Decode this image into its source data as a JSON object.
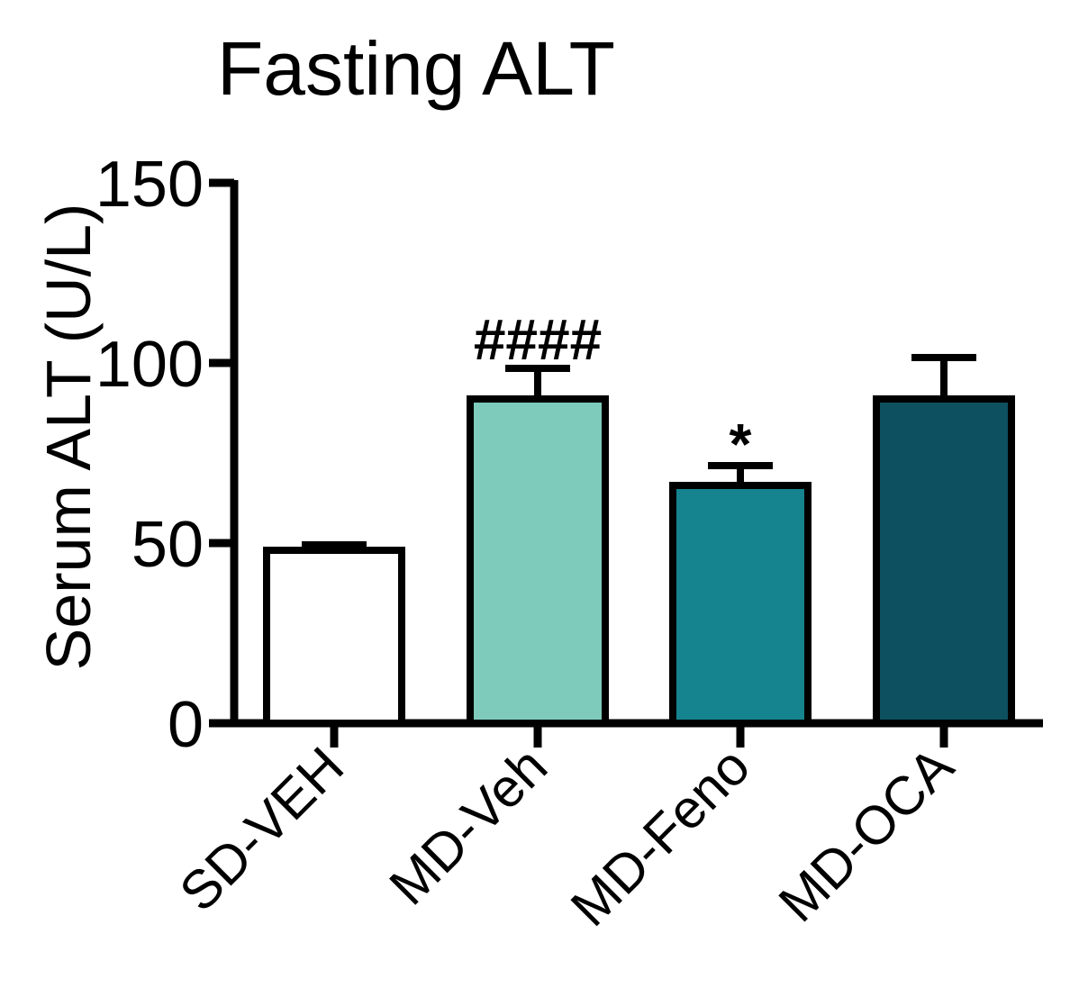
{
  "chart_data": {
    "type": "bar",
    "title": "Fasting ALT",
    "xlabel": "",
    "ylabel": "Serum ALT (U/L)",
    "ylim": [
      0,
      150
    ],
    "yticks": [
      "0",
      "50",
      "100",
      "150"
    ],
    "ytick_values": [
      0,
      50,
      100,
      150
    ],
    "categories": [
      "SD-VEH",
      "MD-Veh",
      "MD-Feno",
      "MD-OCA"
    ],
    "values": [
      48,
      90,
      66,
      90
    ],
    "errors": [
      1.5,
      8.5,
      5.5,
      11.5
    ],
    "colors": [
      "#ffffff",
      "#7ecbbb",
      "#16848e",
      "#0d5060"
    ],
    "annotations": [
      "",
      "####",
      "*",
      ""
    ],
    "grid": false,
    "legend": "none"
  }
}
